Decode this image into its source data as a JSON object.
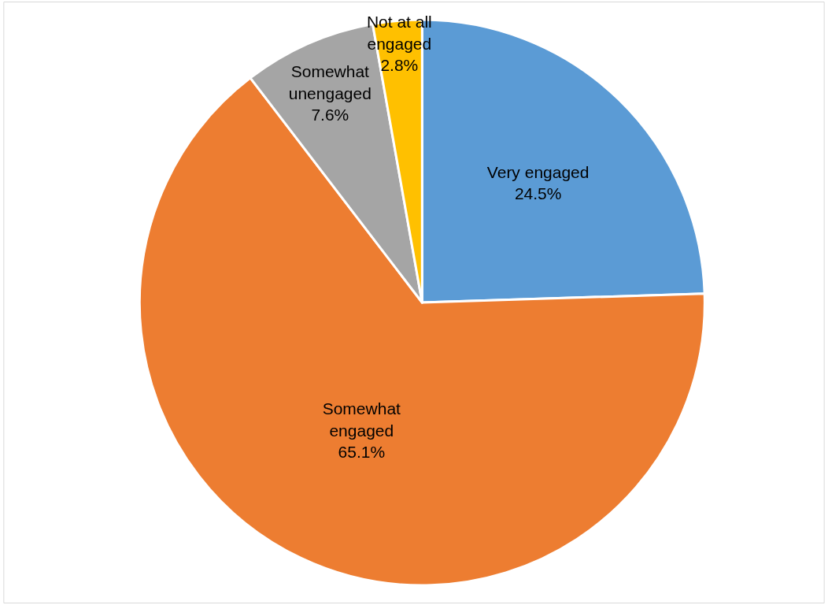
{
  "chart_data": {
    "type": "pie",
    "categories": [
      "Very engaged",
      "Somewhat engaged",
      "Somewhat unengaged",
      "Not at all engaged"
    ],
    "values": [
      24.5,
      65.1,
      7.6,
      2.8
    ],
    "value_labels": [
      "24.5%",
      "65.1%",
      "7.6%",
      "2.8%"
    ],
    "colors": [
      "#5b9bd5",
      "#ed7d31",
      "#a5a5a5",
      "#ffc000"
    ],
    "legend": false
  }
}
